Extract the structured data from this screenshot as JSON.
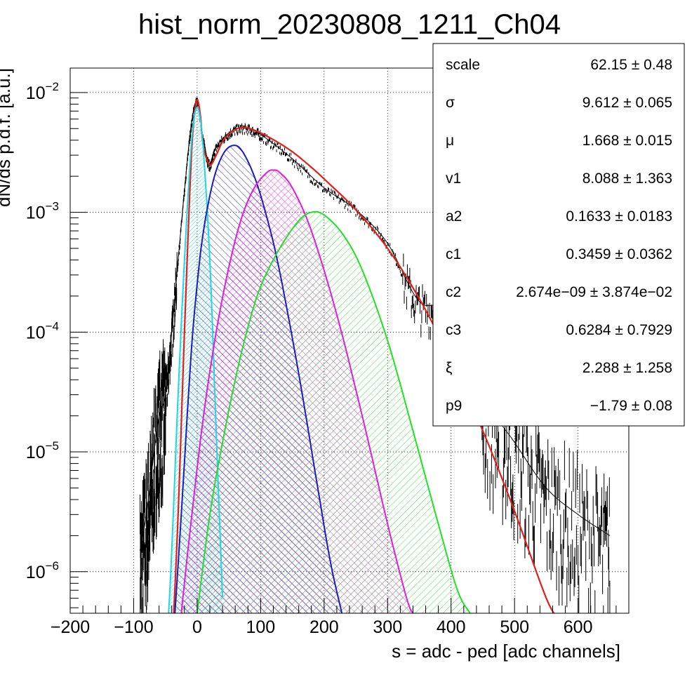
{
  "chart_data": {
    "type": "line",
    "title": "hist_norm_20230808_1211_Ch04",
    "xlabel": "s = adc - ped [adc channels]",
    "ylabel": "dN/ds p.d.f. [a.u.]",
    "xlim": [
      -200,
      680
    ],
    "ylim": [
      4.5e-07,
      0.016
    ],
    "yscale": "log",
    "grid": true,
    "x_ticks": [
      -200,
      -100,
      0,
      100,
      200,
      300,
      400,
      500,
      600
    ],
    "x_tick_labels": [
      "−200",
      "−100",
      "0",
      "100",
      "200",
      "300",
      "400",
      "500",
      "600"
    ],
    "y_ticks": [
      {
        "value": 1e-06,
        "base": "10",
        "exp": "−6"
      },
      {
        "value": 1e-05,
        "base": "10",
        "exp": "−5"
      },
      {
        "value": 0.0001,
        "base": "10",
        "exp": "−4"
      },
      {
        "value": 0.001,
        "base": "10",
        "exp": "−3"
      },
      {
        "value": 0.01,
        "base": "10",
        "exp": "−2"
      }
    ],
    "series": [
      {
        "role": "data",
        "color": "#000000",
        "x": [
          -90,
          -80,
          -70,
          -60,
          -50,
          -40,
          -30,
          -20,
          -10,
          0,
          10,
          20,
          30,
          50,
          70,
          90,
          110,
          150,
          200,
          250,
          300,
          350,
          400,
          450,
          500,
          550,
          600,
          650
        ],
        "y": [
          1.5e-06,
          3e-06,
          8e-06,
          2e-05,
          3e-05,
          0.0001,
          0.0004,
          0.0015,
          0.005,
          0.0085,
          0.004,
          0.0025,
          0.0035,
          0.0046,
          0.0051,
          0.0048,
          0.0041,
          0.0028,
          0.0016,
          0.00105,
          0.00055,
          0.00018,
          0.00015,
          3e-05,
          1.2e-05,
          5e-06,
          3e-06,
          2e-06
        ]
      },
      {
        "role": "total fit",
        "color": "#e0201b",
        "x": [
          -40,
          -30,
          -20,
          -10,
          -5,
          0,
          5,
          10,
          20,
          30,
          40,
          50,
          60,
          70,
          80,
          100,
          125,
          150,
          175,
          200,
          250,
          300,
          350,
          400,
          450,
          500,
          550,
          570
        ],
        "y": [
          2e-07,
          3e-06,
          0.0001,
          0.0023,
          0.006,
          0.0087,
          0.0065,
          0.0035,
          0.0025,
          0.003,
          0.0039,
          0.0045,
          0.0049,
          0.0051,
          0.00505,
          0.0046,
          0.0039,
          0.0032,
          0.0025,
          0.0019,
          0.00105,
          0.0005,
          0.00019,
          5.8e-05,
          1.5e-05,
          3.2e-06,
          6e-07,
          4e-07
        ]
      },
      {
        "role": "component",
        "color": "#1fd6e6",
        "fill": "#1fd6e6",
        "hatch": "dense",
        "x": [
          -45,
          -40,
          -30,
          -20,
          -10,
          -5,
          0,
          5,
          10,
          20,
          30,
          40
        ],
        "y": [
          4.5e-07,
          1.5e-06,
          3e-05,
          0.0004,
          0.0032,
          0.006,
          0.0075,
          0.006,
          0.0032,
          0.0004,
          1.5e-05,
          6e-07
        ]
      },
      {
        "role": "component",
        "color": "#1b1bc4",
        "fill": "#1b1bc4",
        "hatch": "left",
        "x": [
          -35,
          -25,
          -10,
          0,
          10,
          25,
          40,
          55,
          70,
          90,
          110,
          130,
          160,
          190,
          210,
          228
        ],
        "y": [
          4.5e-07,
          3e-06,
          6e-05,
          0.00025,
          0.0007,
          0.0018,
          0.003,
          0.0036,
          0.0033,
          0.002,
          0.0009,
          0.00032,
          4.5e-05,
          5e-06,
          1.2e-06,
          4.5e-07
        ]
      },
      {
        "role": "component",
        "color": "#e01ce0",
        "fill": "#e01ce0",
        "hatch": "cross",
        "x": [
          -25,
          -10,
          10,
          30,
          50,
          70,
          90,
          110,
          120,
          130,
          150,
          180,
          220,
          260,
          300,
          330,
          340
        ],
        "y": [
          4.5e-07,
          2.5e-06,
          2e-05,
          0.0001,
          0.00035,
          0.0009,
          0.0016,
          0.00215,
          0.00225,
          0.00215,
          0.0016,
          0.0007,
          0.00014,
          2e-05,
          2.5e-06,
          6e-07,
          4.5e-07
        ]
      },
      {
        "role": "component",
        "color": "#22e022",
        "fill": "#22e022",
        "hatch": "right",
        "x": [
          0,
          20,
          40,
          60,
          80,
          100,
          130,
          160,
          180,
          200,
          230,
          260,
          300,
          340,
          380,
          410,
          430
        ],
        "y": [
          4.5e-07,
          3e-06,
          1.2e-05,
          4e-05,
          0.00011,
          0.00024,
          0.0005,
          0.00085,
          0.001,
          0.00095,
          0.00065,
          0.00033,
          8.5e-05,
          1.5e-05,
          2.5e-06,
          7e-07,
          4.5e-07
        ]
      }
    ],
    "stats": [
      {
        "name": "scale",
        "value": "62.15 ± 0.48"
      },
      {
        "name": "σ",
        "value": "9.612 ± 0.065"
      },
      {
        "name": "μ",
        "value": "1.668 ± 0.015"
      },
      {
        "name": "v1",
        "value": "8.088 ± 1.363"
      },
      {
        "name": "a2",
        "value": "0.1633 ± 0.0183"
      },
      {
        "name": "c1",
        "value": "0.3459 ± 0.0362"
      },
      {
        "name": "c2",
        "value": "2.674e−09 ± 3.874e−02"
      },
      {
        "name": "c3",
        "value": "0.6284 ± 0.7929"
      },
      {
        "name": "ξ",
        "value": "2.288 ± 1.258"
      },
      {
        "name": "p9",
        "value": "−1.79 ± 0.08"
      }
    ]
  }
}
